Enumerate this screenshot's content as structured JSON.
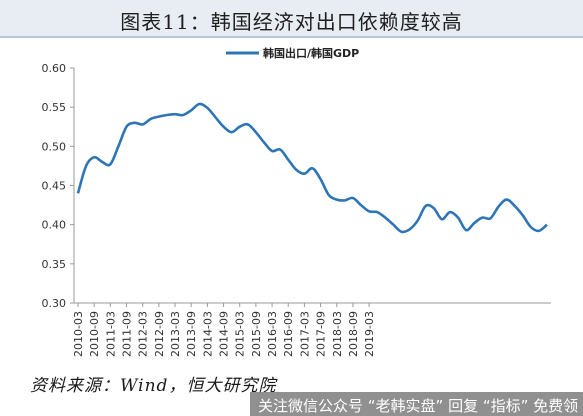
{
  "header": {
    "title": "图表11：韩国经济对出口依赖度较高"
  },
  "footer": {
    "source": "资料来源：Wind，恒大研究院",
    "watermark": "关注微信公众号 “老韩实盘” 回复 “指标” 免费领"
  },
  "colors": {
    "line": "#2E75B6",
    "title_bg": "#e8edf3",
    "axis": "#999999"
  },
  "chart_data": {
    "type": "line",
    "legend": "top-center",
    "series": [
      {
        "name": "韩国出口/韩国GDP",
        "values": [
          0.44,
          0.475,
          0.486,
          0.48,
          0.477,
          0.5,
          0.525,
          0.53,
          0.528,
          0.535,
          0.538,
          0.54,
          0.541,
          0.54,
          0.546,
          0.554,
          0.549,
          0.537,
          0.525,
          0.518,
          0.525,
          0.528,
          0.518,
          0.505,
          0.494,
          0.496,
          0.483,
          0.47,
          0.465,
          0.472,
          0.458,
          0.438,
          0.432,
          0.431,
          0.434,
          0.425,
          0.417,
          0.416,
          0.409,
          0.4,
          0.391,
          0.394,
          0.405,
          0.424,
          0.421,
          0.407,
          0.416,
          0.409,
          0.393,
          0.402,
          0.409,
          0.408,
          0.423,
          0.432,
          0.424,
          0.412,
          0.397,
          0.392,
          0.4
        ]
      }
    ],
    "x_tick_labels": [
      "2010-03",
      "2010-09",
      "2011-03",
      "2011-09",
      "2012-03",
      "2012-09",
      "2013-03",
      "2013-09",
      "2014-03",
      "2014-09",
      "2015-03",
      "2015-09",
      "2016-03",
      "2016-09",
      "2017-03",
      "2017-09",
      "2018-03",
      "2018-09",
      "2019-03"
    ],
    "y_ticks": [
      "0.30",
      "0.35",
      "0.40",
      "0.45",
      "0.50",
      "0.55",
      "0.60"
    ],
    "ylim": [
      0.3,
      0.6
    ],
    "grid": false
  }
}
